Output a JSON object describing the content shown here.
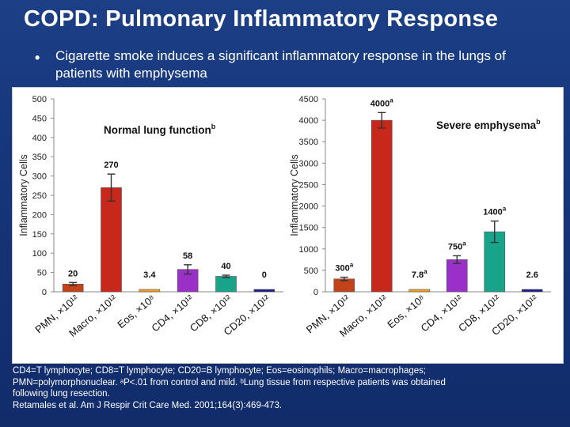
{
  "title": "COPD: Pulmonary Inflammatory Response",
  "bullet": {
    "marker": "•",
    "text": "Cigarette smoke induces a significant inflammatory response in the lungs of patients with emphysema"
  },
  "footnotes": [
    "CD4=T lymphocyte; CD8=T lymphocyte; CD20=B lymphocyte; Eos=eosinophils; Macro=macrophages;",
    "PMN=polymorphonuclear. ᵃP<.01 from control and mild. ᵇLung tissue from respective patients was obtained",
    "following lung resection.",
    "Retamales et al. Am J Respir Crit Care Med. 2001;164(3):469-473."
  ],
  "colors": {
    "background": "#1a3a80",
    "pmn": "#c4421a",
    "macro": "#c8281c",
    "eos": "#f0a020",
    "cd4": "#9b30c8",
    "cd8": "#18a48a",
    "cd20": "#1c1c8c"
  },
  "chart_data": [
    {
      "type": "bar",
      "title": "Normal lung function",
      "title_superscript": "b",
      "ylabel": "Inflammatory Cells",
      "ylim": [
        0,
        500
      ],
      "yticks": [
        0,
        50,
        100,
        150,
        200,
        250,
        300,
        350,
        400,
        450,
        500
      ],
      "categories": [
        "PMN, ×10¹²",
        "Macro, ×10¹²",
        "Eos, ×10⁸",
        "CD4, ×10¹²",
        "CD8, ×10¹²",
        "CD20, ×10¹²"
      ],
      "values": [
        20,
        270,
        3.4,
        58,
        40,
        0
      ],
      "value_labels": [
        "20",
        "270",
        "3.4",
        "58",
        "40",
        "0"
      ],
      "error": [
        4,
        35,
        0,
        12,
        3,
        0
      ]
    },
    {
      "type": "bar",
      "title": "Severe emphysema",
      "title_superscript": "b",
      "ylabel": "Inflammatory Cells",
      "ylim": [
        0,
        4500
      ],
      "yticks": [
        0,
        500,
        1000,
        1500,
        2000,
        2500,
        3000,
        3500,
        4000,
        4500
      ],
      "categories": [
        "PMN, ×10¹²",
        "Macro, ×10¹²",
        "Eos, ×10⁸",
        "CD4, ×10¹²",
        "CD8, ×10¹²",
        "CD20, ×10¹²"
      ],
      "values": [
        300,
        4000,
        7.8,
        750,
        1400,
        2.6
      ],
      "value_labels": [
        "300",
        "4000",
        "7.8",
        "750",
        "1400",
        "2.6"
      ],
      "value_superscripts": [
        "a",
        "a",
        "a",
        "a",
        "a",
        ""
      ],
      "error": [
        40,
        180,
        0,
        90,
        250,
        0
      ]
    }
  ]
}
